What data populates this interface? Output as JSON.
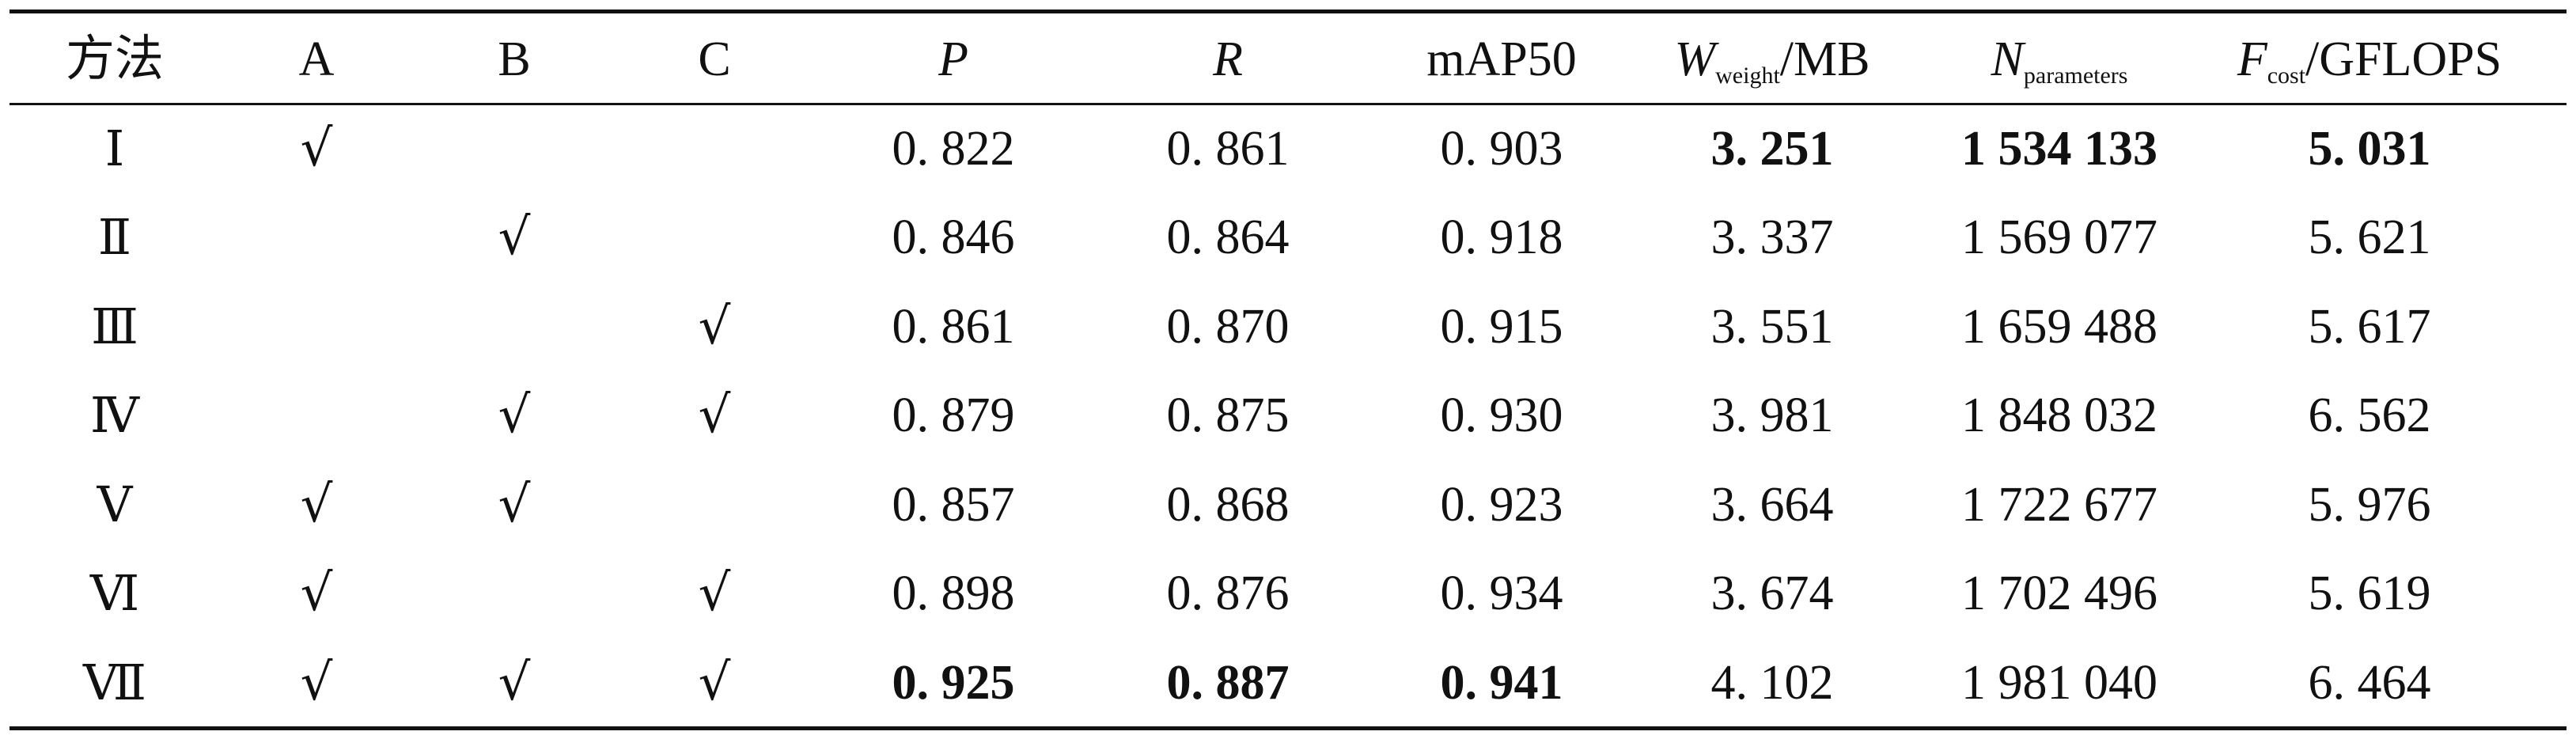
{
  "table": {
    "headers": {
      "method": "方法",
      "a": "A",
      "b": "B",
      "c": "C",
      "p": "P",
      "r": "R",
      "map50": "mAP50",
      "weight": {
        "symbol": "W",
        "subscript": "weight",
        "unit": "/MB"
      },
      "params": {
        "symbol": "N",
        "subscript": "parameters"
      },
      "cost": {
        "symbol": "F",
        "subscript": "cost",
        "unit": "/GFLOPS"
      }
    },
    "check_mark": "√",
    "rows": [
      {
        "method": "Ⅰ",
        "a": "√",
        "b": "",
        "c": "",
        "p": "0. 822",
        "r": "0. 861",
        "map50": "0. 903",
        "weight": "3. 251",
        "params": "1 534 133",
        "cost": "5. 031"
      },
      {
        "method": "Ⅱ",
        "a": "",
        "b": "√",
        "c": "",
        "p": "0. 846",
        "r": "0. 864",
        "map50": "0. 918",
        "weight": "3. 337",
        "params": "1 569 077",
        "cost": "5. 621"
      },
      {
        "method": "Ⅲ",
        "a": "",
        "b": "",
        "c": "√",
        "p": "0. 861",
        "r": "0. 870",
        "map50": "0. 915",
        "weight": "3. 551",
        "params": "1 659 488",
        "cost": "5. 617"
      },
      {
        "method": "Ⅳ",
        "a": "",
        "b": "√",
        "c": "√",
        "p": "0. 879",
        "r": "0. 875",
        "map50": "0. 930",
        "weight": "3. 981",
        "params": "1 848 032",
        "cost": "6. 562"
      },
      {
        "method": "Ⅴ",
        "a": "√",
        "b": "√",
        "c": "",
        "p": "0. 857",
        "r": "0. 868",
        "map50": "0. 923",
        "weight": "3. 664",
        "params": "1 722 677",
        "cost": "5. 976"
      },
      {
        "method": "Ⅵ",
        "a": "√",
        "b": "",
        "c": "√",
        "p": "0. 898",
        "r": "0. 876",
        "map50": "0. 934",
        "weight": "3. 674",
        "params": "1 702 496",
        "cost": "5. 619"
      },
      {
        "method": "Ⅶ",
        "a": "√",
        "b": "√",
        "c": "√",
        "p": "0. 925",
        "r": "0. 887",
        "map50": "0. 941",
        "weight": "4. 102",
        "params": "1 981 040",
        "cost": "6. 464"
      }
    ]
  }
}
